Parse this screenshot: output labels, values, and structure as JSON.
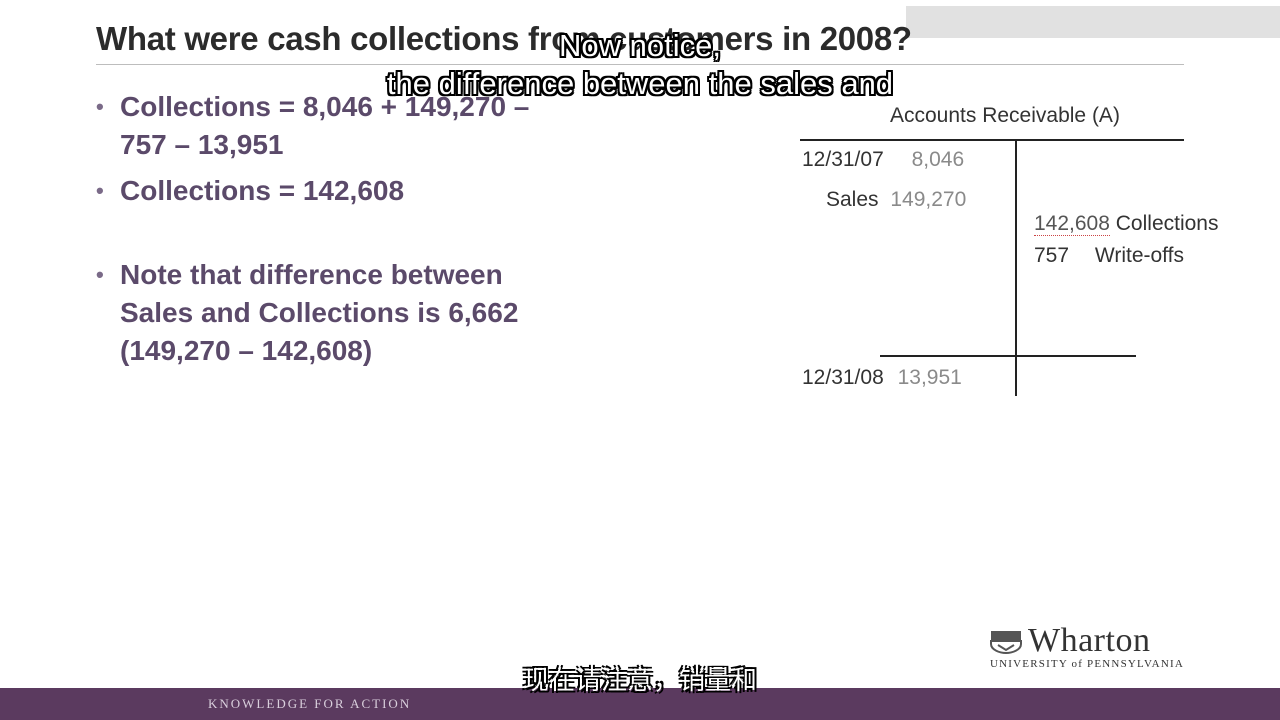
{
  "slide": {
    "title": "What were cash collections from customers in 2008?",
    "bullets": [
      "Collections = 8,046 + 149,270 –\n757 – 13,951",
      "Collections = 142,608",
      "Note that difference between\nSales and Collections is 6,662\n(149,270 – 142,608)"
    ],
    "bullet_symbol": "•"
  },
  "t_account": {
    "title": "Accounts Receivable (A)",
    "debits": [
      {
        "label": "12/31/07",
        "value": "8,046"
      },
      {
        "label": "Sales",
        "value": "149,270"
      }
    ],
    "credits": [
      {
        "value": "142,608",
        "label": "Collections"
      },
      {
        "value": "757",
        "label": "Write-offs"
      }
    ],
    "ending": {
      "label": "12/31/08",
      "value": "13,951"
    }
  },
  "subtitles": {
    "en_line1": "Now notice,",
    "en_line2": "the difference between the sales and",
    "zh": "现在请注意，销量和"
  },
  "branding": {
    "logo_word": "Wharton",
    "logo_sub": "UNIVERSITY of PENNSYLVANIA",
    "footer": "KNOWLEDGE FOR ACTION",
    "footer_color": "#5b3a5f"
  }
}
